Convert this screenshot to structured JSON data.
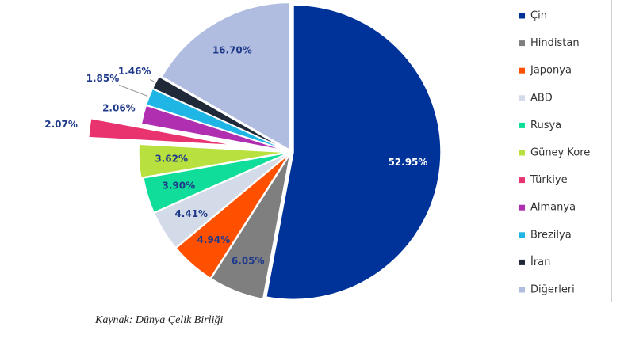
{
  "chart_data": {
    "type": "pie",
    "categories": [
      "Çin",
      "Hindistan",
      "Japonya",
      "ABD",
      "Rusya",
      "Güney Kore",
      "Türkiye",
      "Almanya",
      "Brezilya",
      "İran",
      "Diğerleri"
    ],
    "values": [
      52.95,
      6.05,
      4.94,
      4.41,
      3.9,
      3.62,
      2.07,
      2.06,
      1.85,
      1.46,
      16.7
    ],
    "value_labels": [
      "52.95%",
      "6.05%",
      "4.94%",
      "4.41%",
      "3.90%",
      "3.62%",
      "2.07%",
      "2.06%",
      "1.85%",
      "1.46%",
      "16.70%"
    ],
    "colors": [
      "#003399",
      "#7f7f7f",
      "#ff5000",
      "#d3dbe9",
      "#10dd9a",
      "#b8e03e",
      "#e8336e",
      "#b02fb0",
      "#1fb6e6",
      "#1f2937",
      "#b0bde0"
    ],
    "legend": "right",
    "source": "Kaynak: Dünya Çelik Birliği"
  }
}
